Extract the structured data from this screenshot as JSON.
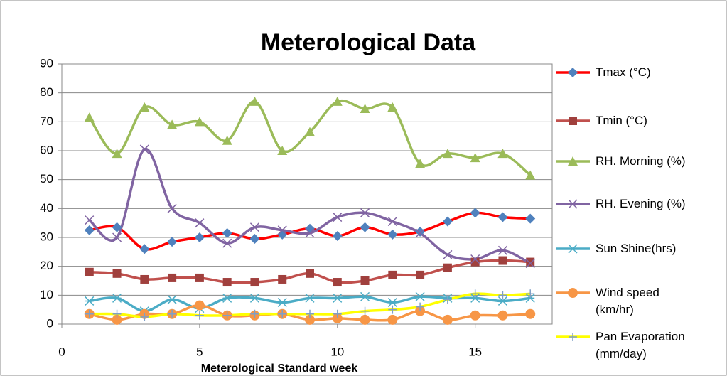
{
  "chart_data": {
    "type": "line",
    "title": "Meterological Data",
    "x_label": "Meterological Standard week",
    "x": [
      1,
      2,
      3,
      4,
      5,
      6,
      7,
      8,
      9,
      10,
      11,
      12,
      13,
      14,
      15,
      16,
      17
    ],
    "xlim": [
      0,
      18
    ],
    "xticks": [
      0,
      5,
      10,
      15
    ],
    "ylim": [
      0,
      90
    ],
    "yticks": [
      0,
      10,
      20,
      30,
      40,
      50,
      60,
      70,
      80,
      90
    ],
    "grid": true,
    "legend": "right",
    "series": [
      {
        "name": "Tmax (°C)",
        "color": "#ff0000",
        "marker_color": "#4f81bd",
        "marker": "diamond",
        "values": [
          32.5,
          33.5,
          26,
          28.5,
          30,
          31.5,
          29.5,
          31,
          33,
          30.5,
          33.5,
          31,
          32,
          35.5,
          38.5,
          37,
          36.5
        ]
      },
      {
        "name": "Tmin (°C)",
        "color": "#c0504d",
        "marker_color": "#a0403d",
        "marker": "square",
        "values": [
          18,
          17.5,
          15.5,
          16,
          16,
          14.5,
          14.5,
          15.5,
          17.5,
          14.5,
          15,
          17,
          17,
          19.5,
          21.5,
          22,
          21.5
        ]
      },
      {
        "name": "RH. Morning (%)",
        "color": "#9bbb59",
        "marker_color": "#9bbb59",
        "marker": "triangle",
        "values": [
          71.5,
          59,
          75,
          69,
          70,
          63.5,
          77,
          60,
          66.5,
          77,
          74.5,
          75,
          55.5,
          59,
          57.5,
          59,
          51.5
        ]
      },
      {
        "name": "RH. Evening (%)",
        "color": "#8064a2",
        "marker_color": "#8064a2",
        "marker": "x",
        "values": [
          36,
          30,
          60.5,
          40,
          35,
          28,
          33.5,
          32.5,
          31.5,
          37,
          38.5,
          35.5,
          31.5,
          24,
          22.5,
          25.5,
          21
        ]
      },
      {
        "name": "Sun Shine(hrs)",
        "color": "#4bacc6",
        "marker_color": "#4bacc6",
        "marker": "star",
        "values": [
          8,
          9,
          4.5,
          8.5,
          5.5,
          9,
          9,
          7.5,
          9,
          9,
          9.5,
          7.5,
          9.5,
          9,
          9,
          8,
          9
        ]
      },
      {
        "name": "Wind speed (km/hr)",
        "color": "#f79646",
        "marker_color": "#f79646",
        "marker": "circle",
        "values": [
          3.5,
          1.5,
          3.5,
          3.5,
          6.5,
          3,
          3,
          3.5,
          1.5,
          2,
          1.5,
          1.5,
          4.5,
          1.5,
          3,
          3,
          3.5
        ]
      },
      {
        "name": "Pan Evaporation (mm/day)",
        "color": "#ffff00",
        "marker_color": "#7f9fc6",
        "marker": "plus",
        "values": [
          3.5,
          3.5,
          2.5,
          3.5,
          3,
          3,
          3.5,
          3.5,
          3.5,
          3.5,
          4.5,
          5,
          6,
          8.5,
          10.5,
          10,
          10.5
        ]
      }
    ]
  }
}
